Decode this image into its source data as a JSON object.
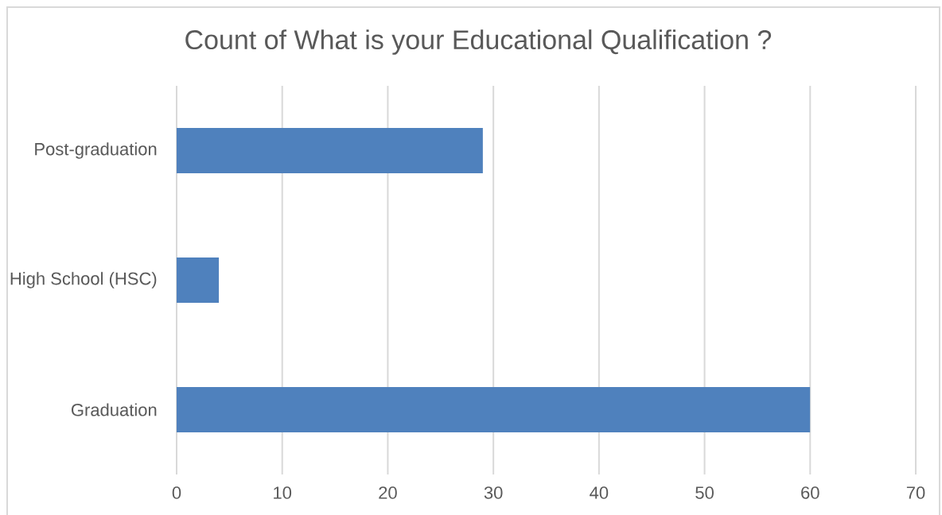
{
  "chart_data": {
    "type": "bar",
    "orientation": "horizontal",
    "title": "Count of What is your Educational Qualification ?",
    "categories": [
      "Post-graduation",
      "High School (HSC)",
      "Graduation"
    ],
    "values": [
      29,
      4,
      60
    ],
    "color": "#4f81bd",
    "xlim": [
      0,
      70
    ],
    "xticks": [
      0,
      10,
      20,
      30,
      40,
      50,
      60,
      70
    ],
    "grid": "x"
  }
}
